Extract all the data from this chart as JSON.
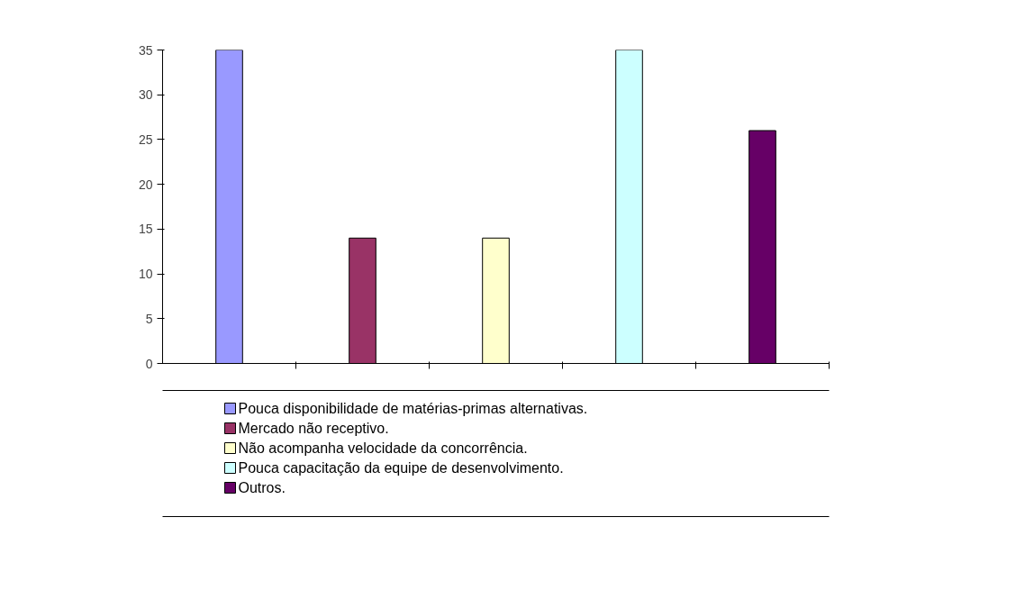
{
  "chart_data": {
    "type": "bar",
    "categories": [
      null,
      null,
      null,
      null,
      null
    ],
    "series": [
      {
        "name": "Pouca disponibilidade de matérias-primas alternativas.",
        "color": "#9999ff",
        "values": [
          35,
          null,
          null,
          null,
          null
        ]
      },
      {
        "name": "Mercado não receptivo.",
        "color": "#993366",
        "values": [
          null,
          14,
          null,
          null,
          null
        ]
      },
      {
        "name": "Não acompanha velocidade da concorrência.",
        "color": "#ffffcc",
        "values": [
          null,
          null,
          14,
          null,
          null
        ]
      },
      {
        "name": "Pouca capacitação da equipe de desenvolvimento.",
        "color": "#ccffff",
        "values": [
          null,
          null,
          null,
          35,
          null
        ]
      },
      {
        "name": "Outros.",
        "color": "#660066",
        "values": [
          null,
          null,
          null,
          null,
          26
        ]
      }
    ],
    "ylim": [
      0,
      35
    ],
    "yticks": [
      0,
      5,
      10,
      15,
      20,
      25,
      30,
      35
    ],
    "grid": false,
    "legend": "bottom"
  }
}
